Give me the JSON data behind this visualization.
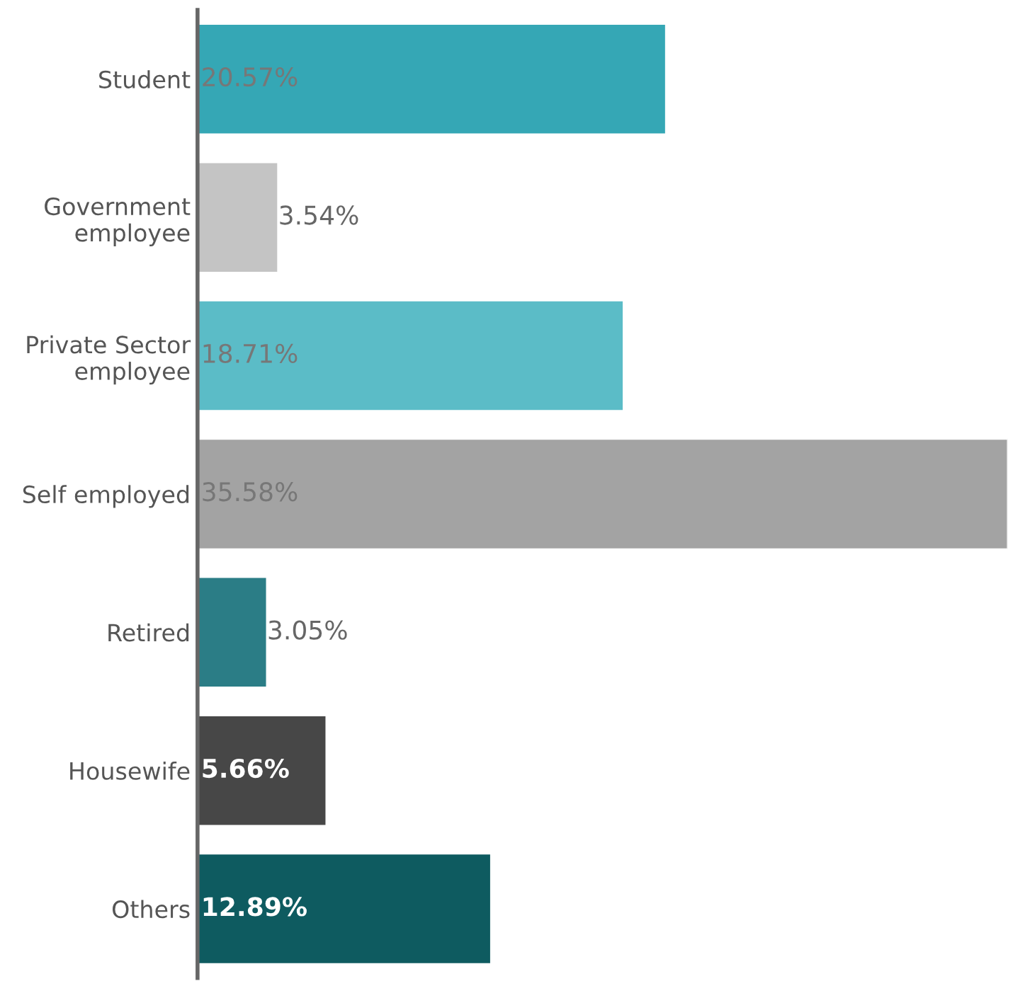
{
  "chart_data": {
    "type": "bar",
    "orientation": "horizontal",
    "categories": [
      "Student",
      "Government\nemployee",
      "Private Sector\nemployee",
      "Self employed",
      "Retired",
      "Housewife",
      "Others"
    ],
    "values": [
      20.57,
      3.54,
      18.71,
      35.58,
      3.05,
      5.66,
      12.89
    ],
    "value_labels": [
      "20.57%",
      "3.54%",
      "18.71%",
      "35.58%",
      "3.05%",
      "5.66%",
      "12.89%"
    ],
    "colors": [
      "#35a7b5",
      "#c4c4c4",
      "#5bbcc7",
      "#a3a3a3",
      "#2b7d86",
      "#474747",
      "#0e5b60"
    ],
    "grid": false,
    "legend": false
  }
}
